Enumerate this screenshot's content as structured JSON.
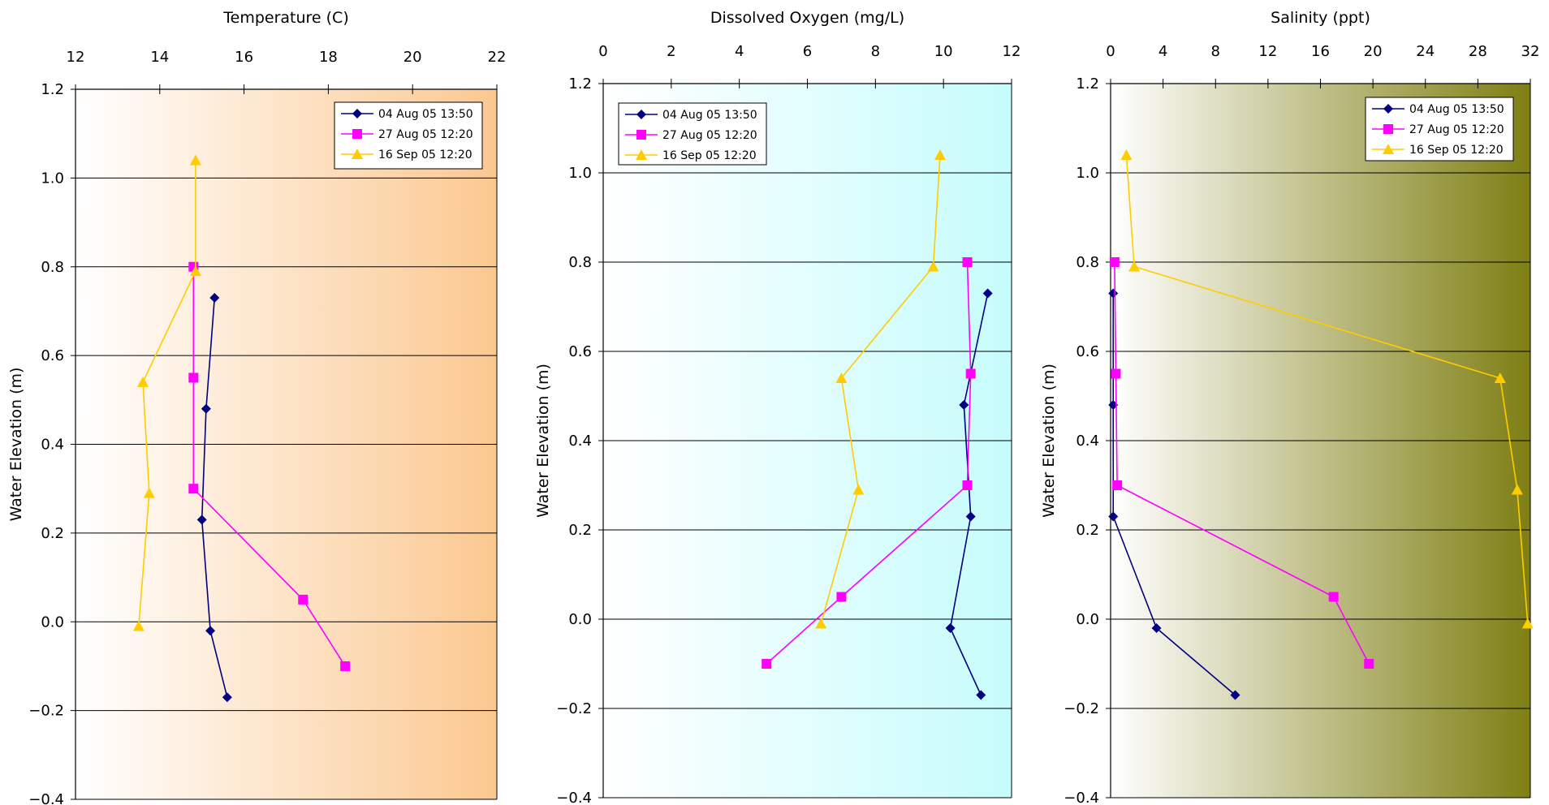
{
  "chart_data": [
    {
      "type": "line",
      "title": "Temperature (C)",
      "xlabel": "Temperature (C)",
      "ylabel": "Water Elevation (m)",
      "xlim": [
        12,
        22
      ],
      "ylim": [
        -0.4,
        1.2
      ],
      "xticks": [
        "12",
        "14",
        "16",
        "18",
        "20",
        "22"
      ],
      "yticks": [
        "-0.4",
        "-0.2",
        "0.0",
        "0.2",
        "0.4",
        "0.6",
        "0.8",
        "1.0",
        "1.2"
      ],
      "gradient": [
        "#ffffff",
        "#fbc890"
      ],
      "legend_position": "top-right",
      "series": [
        {
          "name": "04 Aug 05 13:50",
          "color": "#000080",
          "marker": "diamond",
          "x": [
            15.3,
            15.1,
            15.0,
            15.2,
            15.6
          ],
          "y": [
            0.73,
            0.48,
            0.23,
            -0.02,
            -0.17
          ]
        },
        {
          "name": "27 Aug 05 12:20",
          "color": "#ff00ff",
          "marker": "square",
          "x": [
            14.8,
            14.8,
            14.8,
            17.4,
            18.4
          ],
          "y": [
            0.8,
            0.55,
            0.3,
            0.05,
            -0.1
          ]
        },
        {
          "name": "16 Sep 05 12:20",
          "color": "#ffcc00",
          "marker": "triangle",
          "x": [
            14.85,
            14.85,
            13.6,
            13.75,
            13.5
          ],
          "y": [
            1.04,
            0.79,
            0.54,
            0.29,
            -0.01
          ]
        }
      ]
    },
    {
      "type": "line",
      "title": "Dissolved Oxygen (mg/L)",
      "xlabel": "Dissolved Oxygen (mg/L)",
      "ylabel": "Water Elevation (m)",
      "xlim": [
        0,
        12
      ],
      "ylim": [
        -0.4,
        1.2
      ],
      "xticks": [
        "0",
        "2",
        "4",
        "6",
        "8",
        "10",
        "12"
      ],
      "yticks": [
        "-0.4",
        "-0.2",
        "0.0",
        "0.2",
        "0.4",
        "0.6",
        "0.8",
        "1.0",
        "1.2"
      ],
      "gradient": [
        "#ffffff",
        "#c6fcfc"
      ],
      "legend_position": "top-left",
      "series": [
        {
          "name": "04 Aug 05 13:50",
          "color": "#000080",
          "marker": "diamond",
          "x": [
            11.3,
            10.6,
            10.8,
            10.2,
            11.1
          ],
          "y": [
            0.73,
            0.48,
            0.23,
            -0.02,
            -0.17
          ]
        },
        {
          "name": "27 Aug 05 12:20",
          "color": "#ff00ff",
          "marker": "square",
          "x": [
            10.7,
            10.8,
            10.7,
            7.0,
            4.8
          ],
          "y": [
            0.8,
            0.55,
            0.3,
            0.05,
            -0.1
          ]
        },
        {
          "name": "16 Sep 05 12:20",
          "color": "#ffcc00",
          "marker": "triangle",
          "x": [
            9.9,
            9.7,
            7.0,
            7.5,
            6.4
          ],
          "y": [
            1.04,
            0.79,
            0.54,
            0.29,
            -0.01
          ]
        }
      ]
    },
    {
      "type": "line",
      "title": "Salinity (ppt)",
      "xlabel": "Salinity (ppt)",
      "ylabel": "Water Elevation (m)",
      "xlim": [
        0,
        32
      ],
      "ylim": [
        -0.4,
        1.2
      ],
      "xticks": [
        "0",
        "4",
        "8",
        "12",
        "16",
        "20",
        "24",
        "28",
        "32"
      ],
      "yticks": [
        "-0.4",
        "-0.2",
        "0.0",
        "0.2",
        "0.4",
        "0.6",
        "0.8",
        "1.0",
        "1.2"
      ],
      "gradient": [
        "#ffffff",
        "#7f7f14"
      ],
      "legend_position": "top-right",
      "series": [
        {
          "name": "04 Aug 05 13:50",
          "color": "#000080",
          "marker": "diamond",
          "x": [
            0.2,
            0.2,
            0.2,
            3.5,
            9.5
          ],
          "y": [
            0.73,
            0.48,
            0.23,
            -0.02,
            -0.17
          ]
        },
        {
          "name": "27 Aug 05 12:20",
          "color": "#ff00ff",
          "marker": "square",
          "x": [
            0.3,
            0.4,
            0.5,
            17.0,
            19.7
          ],
          "y": [
            0.8,
            0.55,
            0.3,
            0.05,
            -0.1
          ]
        },
        {
          "name": "16 Sep 05 12:20",
          "color": "#ffcc00",
          "marker": "triangle",
          "x": [
            1.2,
            1.8,
            29.7,
            31.0,
            31.8
          ],
          "y": [
            1.04,
            0.79,
            0.54,
            0.29,
            -0.01
          ]
        }
      ]
    }
  ]
}
